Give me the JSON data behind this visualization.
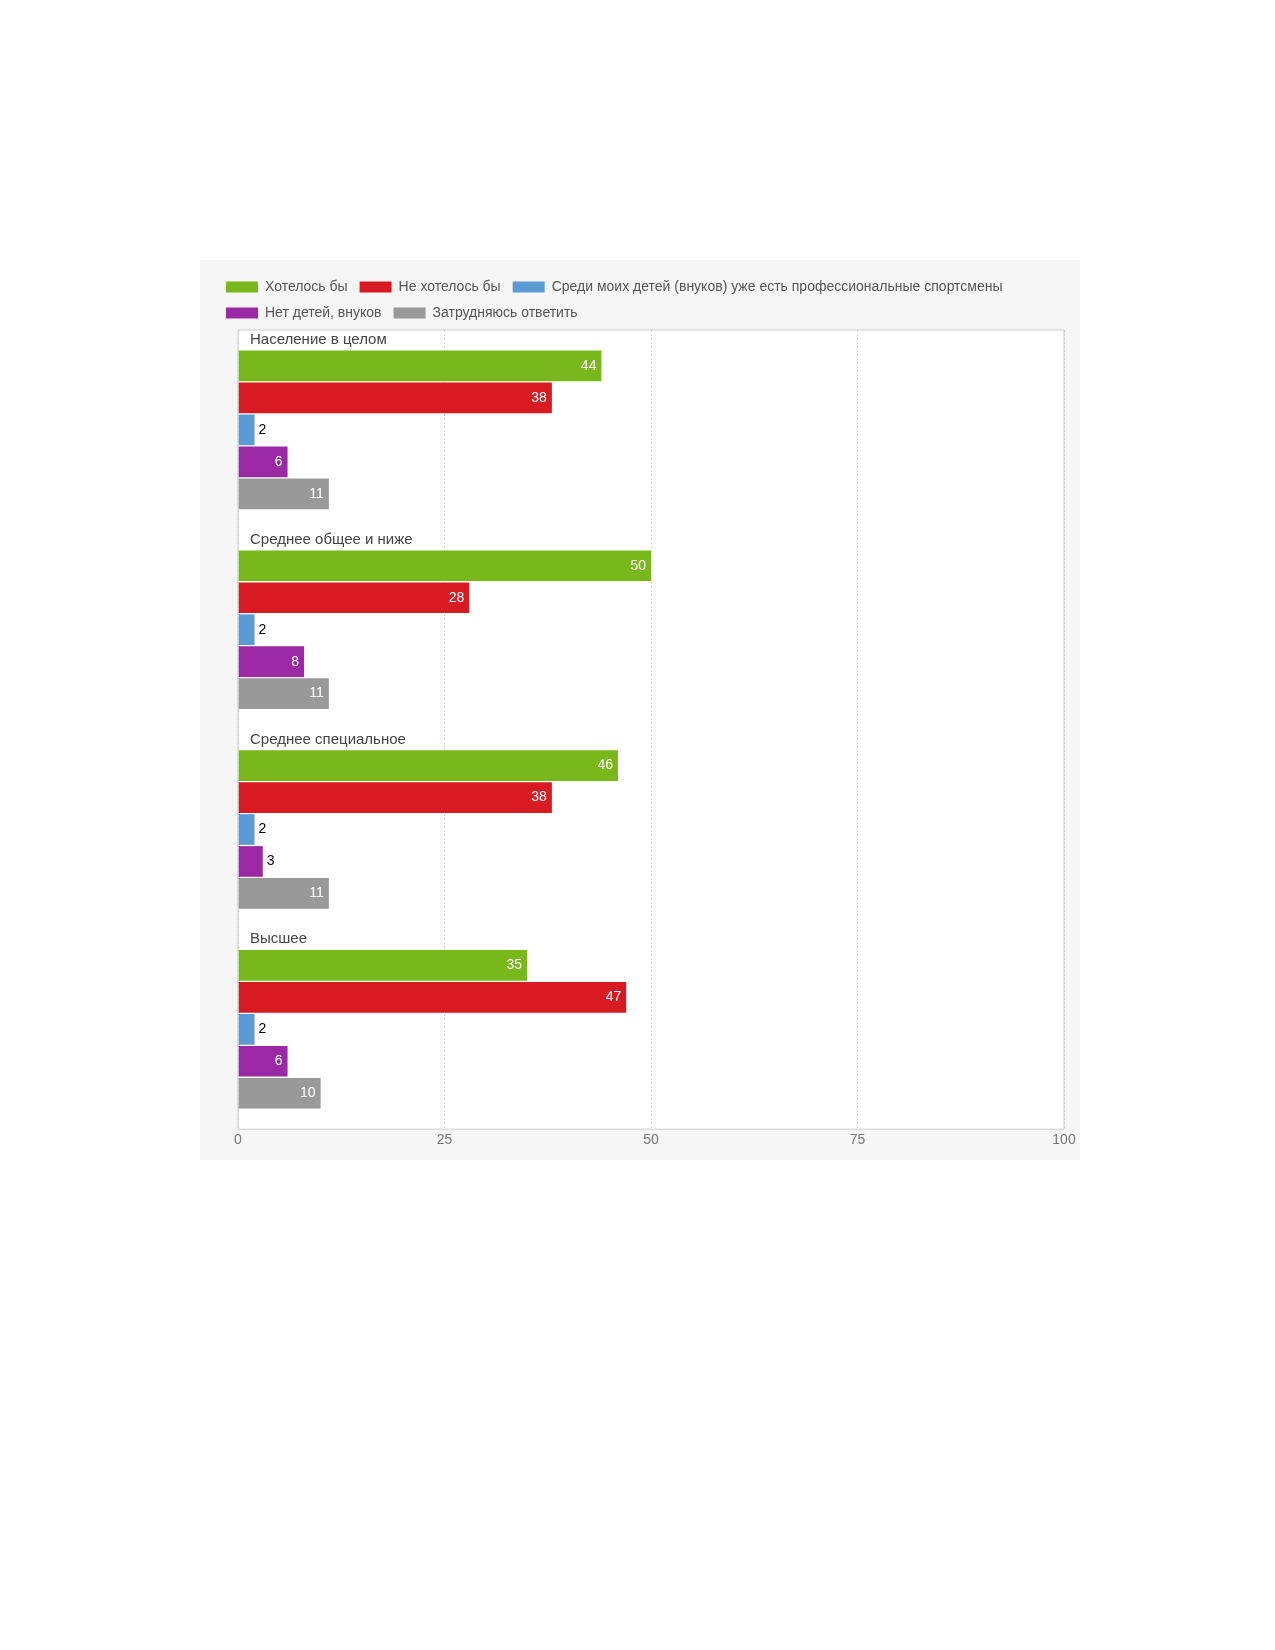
{
  "chart_data": {
    "type": "bar",
    "orientation": "horizontal",
    "categories": [
      "Население в целом",
      "Среднее общее и ниже",
      "Среднее специальное",
      "Высшее"
    ],
    "series": [
      {
        "name": "Хотелось бы",
        "color": "#78b81b",
        "values": [
          44,
          50,
          46,
          35
        ]
      },
      {
        "name": "Не хотелось бы",
        "color": "#d81a22",
        "values": [
          38,
          28,
          38,
          47
        ]
      },
      {
        "name": "Среди моих детей (внуков) уже есть профессиональные спортсмены",
        "color": "#5b9bd5",
        "values": [
          2,
          2,
          2,
          2
        ]
      },
      {
        "name": "Нет детей, внуков",
        "color": "#9b28a4",
        "values": [
          6,
          8,
          3,
          6
        ]
      },
      {
        "name": "Затрудняюсь ответить",
        "color": "#999999",
        "values": [
          11,
          11,
          11,
          10
        ]
      }
    ],
    "xlim": [
      0,
      100
    ],
    "xticks": [
      0,
      25,
      50,
      75,
      100
    ],
    "grid": "x",
    "legend": "top",
    "data_labels": true
  }
}
